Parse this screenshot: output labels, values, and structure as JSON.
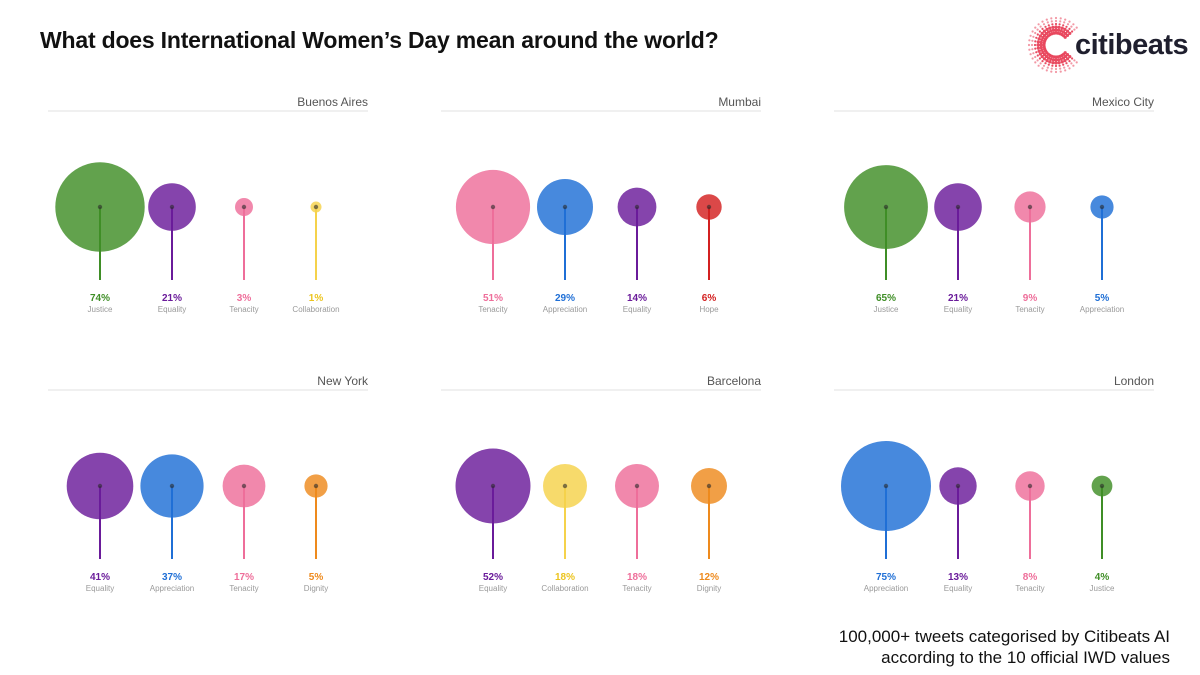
{
  "header": {
    "title": "What does International Women’s Day mean around the world?",
    "logo_text": "citibeats",
    "logo_icon": "citibeats-c-logo-icon"
  },
  "footnote": {
    "line1": "100,000+ tweets categorised by Citibeats AI",
    "line2": "according to the 10 official IWD values"
  },
  "colors": {
    "Justice": "#3f8e26",
    "Equality": "#6a1b9a",
    "Tenacity": "#ee6e9a",
    "Collaboration": "#f5d24b",
    "Appreciation": "#1f6fd6",
    "Hope": "#d32020",
    "Dignity": "#ee8a1d",
    "Appreciation_text": "#1f6fd6",
    "Collaboration_text": "#ecc41e"
  },
  "chart_data": [
    {
      "type": "bubble",
      "title": "Buenos Aires",
      "categories": [
        "Justice",
        "Equality",
        "Tenacity",
        "Collaboration"
      ],
      "values": [
        74,
        21,
        3,
        1
      ],
      "labels": [
        "74%",
        "21%",
        "3%",
        "1%"
      ]
    },
    {
      "type": "bubble",
      "title": "Mumbai",
      "categories": [
        "Tenacity",
        "Appreciation",
        "Equality",
        "Hope"
      ],
      "values": [
        51,
        29,
        14,
        6
      ],
      "labels": [
        "51%",
        "29%",
        "14%",
        "6%"
      ]
    },
    {
      "type": "bubble",
      "title": "Mexico City",
      "categories": [
        "Justice",
        "Equality",
        "Tenacity",
        "Appreciation"
      ],
      "values": [
        65,
        21,
        9,
        5
      ],
      "labels": [
        "65%",
        "21%",
        "9%",
        "5%"
      ]
    },
    {
      "type": "bubble",
      "title": "New York",
      "categories": [
        "Equality",
        "Appreciation",
        "Tenacity",
        "Dignity"
      ],
      "values": [
        41,
        37,
        17,
        5
      ],
      "labels": [
        "41%",
        "37%",
        "17%",
        "5%"
      ]
    },
    {
      "type": "bubble",
      "title": "Barcelona",
      "categories": [
        "Equality",
        "Collaboration",
        "Tenacity",
        "Dignity"
      ],
      "values": [
        52,
        18,
        18,
        12
      ],
      "labels": [
        "52%",
        "18%",
        "18%",
        "12%"
      ]
    },
    {
      "type": "bubble",
      "title": "London",
      "categories": [
        "Appreciation",
        "Equality",
        "Tenacity",
        "Justice"
      ],
      "values": [
        75,
        13,
        8,
        4
      ],
      "labels": [
        "75%",
        "13%",
        "8%",
        "4%"
      ]
    }
  ]
}
